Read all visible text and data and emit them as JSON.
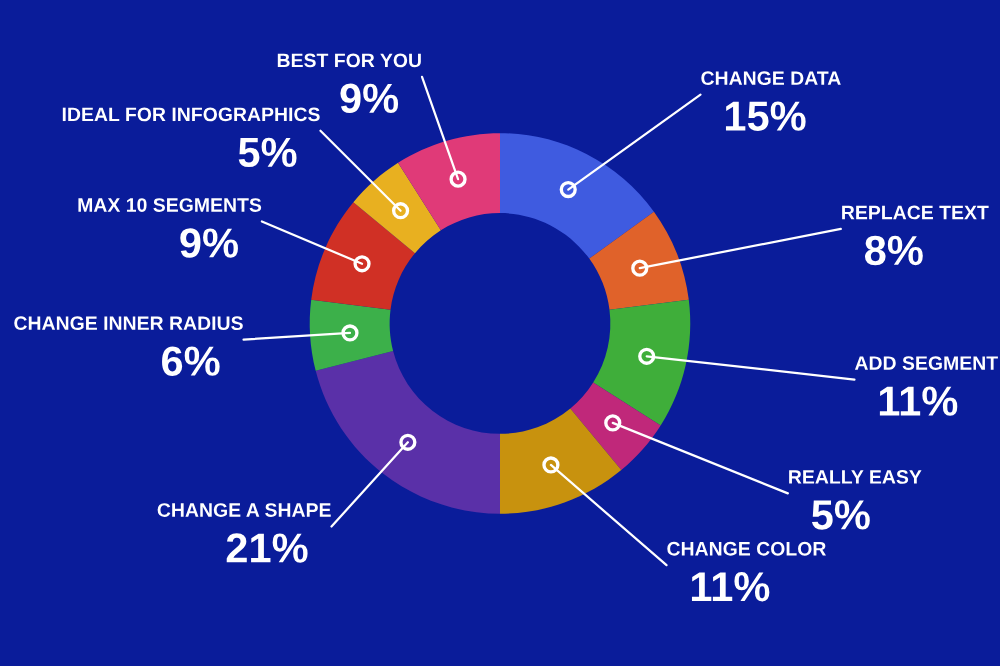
{
  "chart_data": {
    "type": "donut",
    "categories": [
      "CHANGE DATA",
      "REPLACE TEXT",
      "ADD SEGMENT",
      "REALLY EASY",
      "CHANGE COLOR",
      "CHANGE A SHAPE",
      "CHANGE INNER RADIUS",
      "MAX 10 SEGMENTS",
      "IDEAL FOR INFOGRAPHICS",
      "BEST FOR YOU"
    ],
    "values": [
      15,
      8,
      11,
      5,
      11,
      21,
      6,
      9,
      5,
      9
    ],
    "value_labels": [
      "15%",
      "8%",
      "11%",
      "5%",
      "11%",
      "21%",
      "6%",
      "9%",
      "5%",
      "9%"
    ],
    "colors": [
      "#3f5be0",
      "#e0622a",
      "#3fae3a",
      "#c0287a",
      "#c8920e",
      "#5a30a8",
      "#3cb04a",
      "#d03025",
      "#e8b020",
      "#e03a78"
    ]
  }
}
